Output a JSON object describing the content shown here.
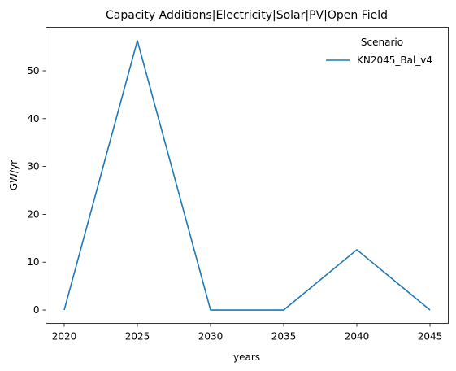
{
  "chart_data": {
    "type": "line",
    "title": "Capacity Additions|Electricity|Solar|PV|Open Field",
    "xlabel": "years",
    "ylabel": "GW/yr",
    "x": [
      2020,
      2025,
      2030,
      2035,
      2040,
      2045
    ],
    "series": [
      {
        "name": "KN2045_Bal_v4",
        "values": [
          0,
          56.3,
          0,
          0,
          12.6,
          0
        ],
        "color": "#1f77b4"
      }
    ],
    "xticks": [
      2020,
      2025,
      2030,
      2035,
      2040,
      2045
    ],
    "yticks": [
      0,
      10,
      20,
      30,
      40,
      50
    ],
    "xlim": [
      2018.75,
      2046.25
    ],
    "ylim": [
      -2.8,
      59.1
    ],
    "grid": false,
    "legend": {
      "title": "Scenario",
      "placement": "top-right"
    }
  }
}
